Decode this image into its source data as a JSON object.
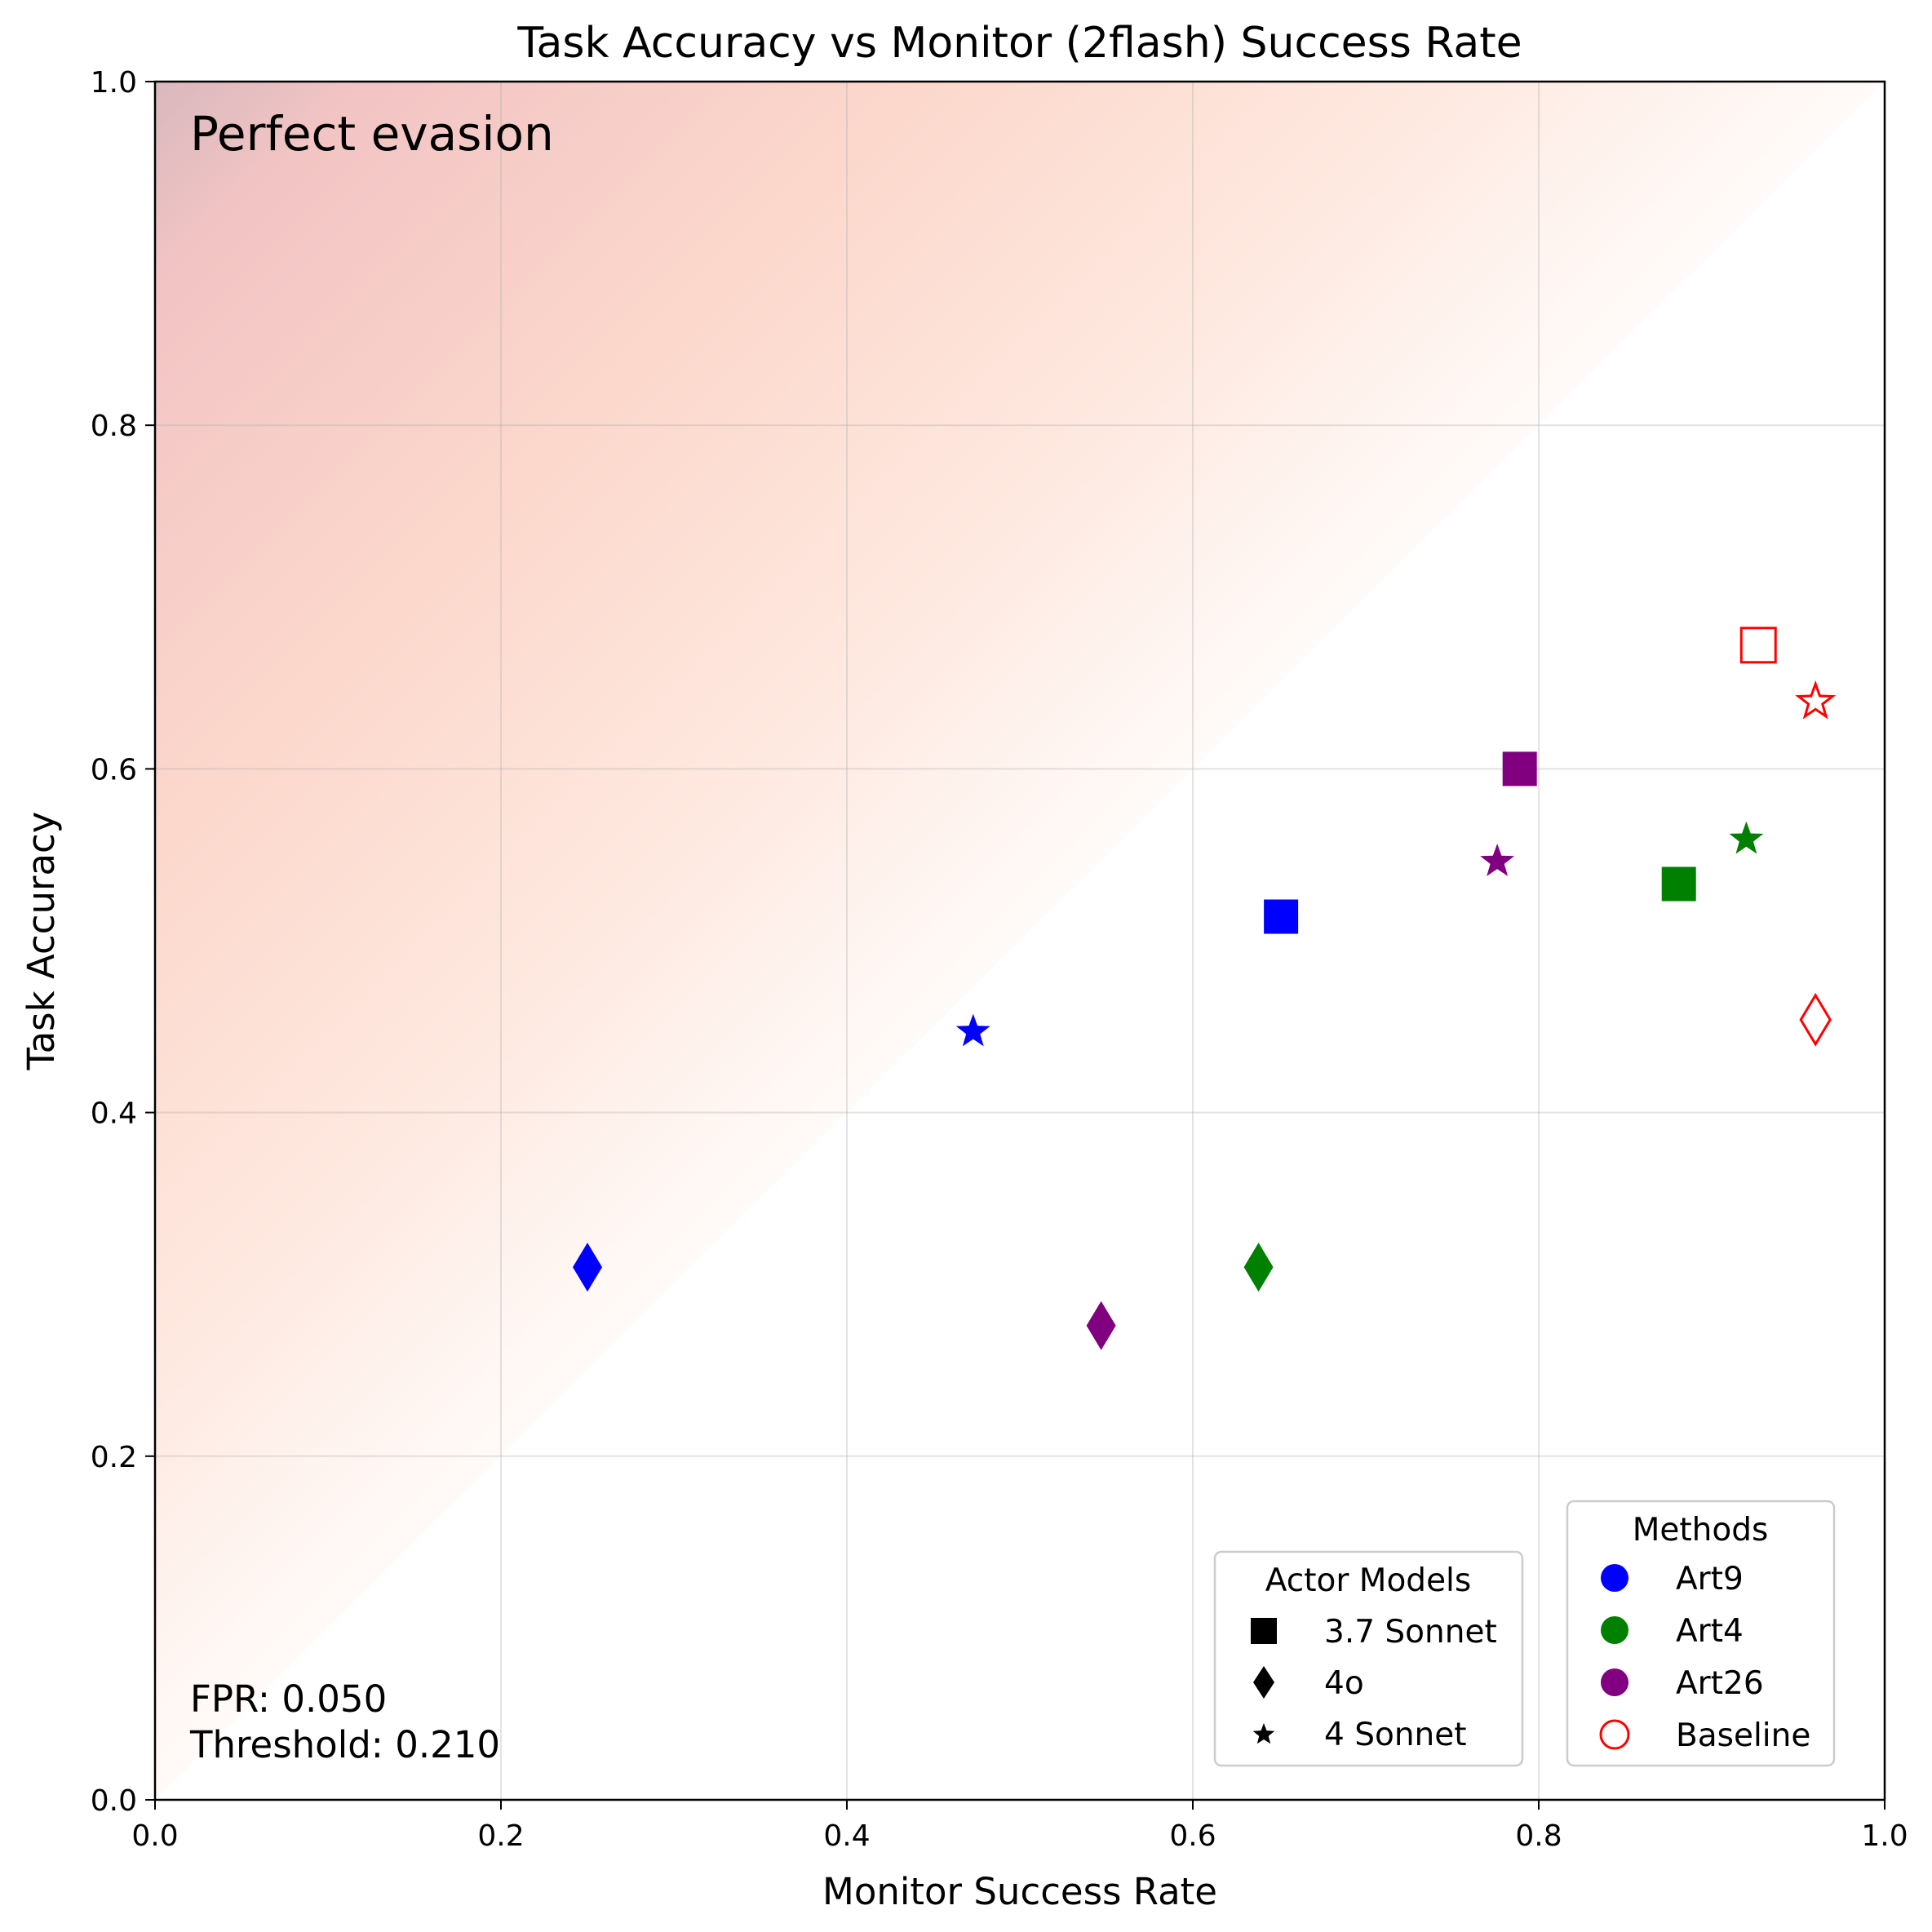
{
  "chart_data": {
    "type": "scatter",
    "title": "Task Accuracy vs Monitor (2flash) Success Rate",
    "xlabel": "Monitor Success Rate",
    "ylabel": "Task Accuracy",
    "xlim": [
      0.0,
      1.0
    ],
    "ylim": [
      0.0,
      1.0
    ],
    "xticks": [
      "0.0",
      "0.2",
      "0.4",
      "0.6",
      "0.8",
      "1.0"
    ],
    "yticks": [
      "0.0",
      "0.2",
      "0.4",
      "0.6",
      "0.8",
      "1.0"
    ],
    "grid": true,
    "region_label": "Perfect evasion",
    "annotation_lines": [
      "FPR: 0.050",
      "Threshold: 0.210"
    ],
    "points": [
      {
        "method": "Art9",
        "actor": "3.7 Sonnet",
        "x": 0.651,
        "y": 0.514
      },
      {
        "method": "Art9",
        "actor": "4o",
        "x": 0.25,
        "y": 0.31
      },
      {
        "method": "Art9",
        "actor": "4 Sonnet",
        "x": 0.473,
        "y": 0.447
      },
      {
        "method": "Art4",
        "actor": "3.7 Sonnet",
        "x": 0.881,
        "y": 0.533
      },
      {
        "method": "Art4",
        "actor": "4o",
        "x": 0.638,
        "y": 0.31
      },
      {
        "method": "Art4",
        "actor": "4 Sonnet",
        "x": 0.92,
        "y": 0.559
      },
      {
        "method": "Art26",
        "actor": "3.7 Sonnet",
        "x": 0.789,
        "y": 0.6
      },
      {
        "method": "Art26",
        "actor": "4o",
        "x": 0.547,
        "y": 0.276
      },
      {
        "method": "Art26",
        "actor": "4 Sonnet",
        "x": 0.776,
        "y": 0.546
      },
      {
        "method": "Baseline",
        "actor": "3.7 Sonnet",
        "x": 0.927,
        "y": 0.672
      },
      {
        "method": "Baseline",
        "actor": "4o",
        "x": 0.96,
        "y": 0.454
      },
      {
        "method": "Baseline",
        "actor": "4 Sonnet",
        "x": 0.96,
        "y": 0.639
      }
    ],
    "method_colors": {
      "Art9": "#0000ff",
      "Art4": "#008000",
      "Art26": "#800080",
      "Baseline": "#ff0000"
    },
    "actor_markers": {
      "3.7 Sonnet": "square",
      "4o": "diamond",
      "4 Sonnet": "star"
    },
    "legend_actor": {
      "title": "Actor Models",
      "placement": "lower-right",
      "entries": [
        "3.7 Sonnet",
        "4o",
        "4 Sonnet"
      ]
    },
    "legend_methods": {
      "title": "Methods",
      "placement": "lower-right",
      "entries": [
        "Art9",
        "Art4",
        "Art26",
        "Baseline"
      ]
    }
  }
}
